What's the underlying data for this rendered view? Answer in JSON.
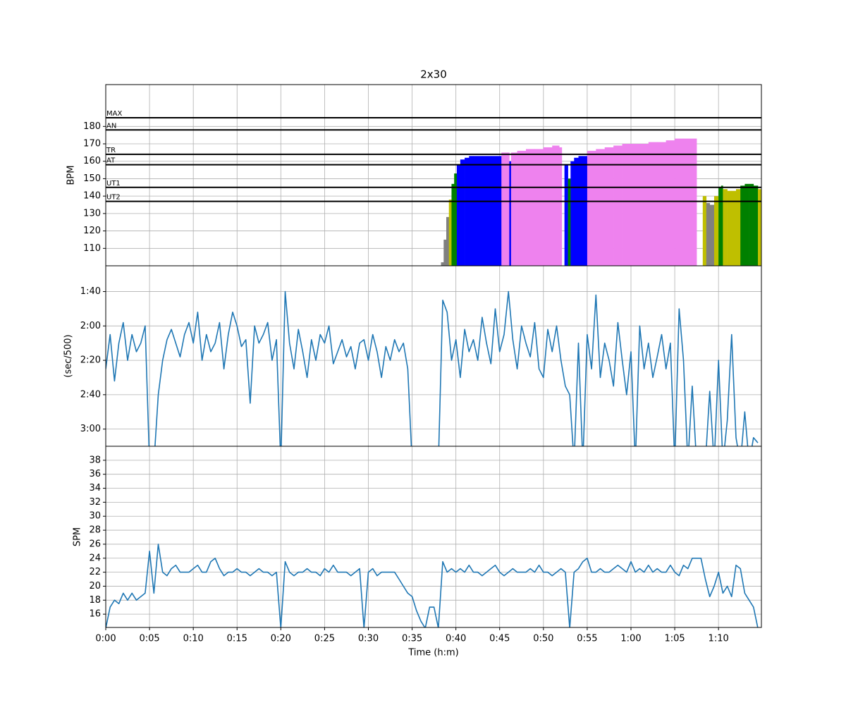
{
  "chart_data": [
    {
      "type": "area",
      "title": "2x30",
      "ylabel": "BPM",
      "xlim": [
        0,
        74.9
      ],
      "ylim": [
        100,
        204
      ],
      "yticks": [
        110,
        120,
        130,
        140,
        150,
        160,
        170,
        180
      ],
      "grid": true,
      "below_color": "gray",
      "zones": [
        {
          "name": "UT2",
          "value": 137,
          "color": "#bfbf00"
        },
        {
          "name": "UT1",
          "value": 145,
          "color": "green"
        },
        {
          "name": "AT",
          "value": 158,
          "color": "blue"
        },
        {
          "name": "TR",
          "value": 164,
          "color": "violet"
        },
        {
          "name": "AN",
          "value": 178
        },
        {
          "name": "MAX",
          "value": 185
        }
      ],
      "x": [
        38.3,
        38.6,
        38.9,
        39.2,
        39.5,
        39.8,
        40.1,
        40.5,
        41,
        41.5,
        42,
        43,
        44,
        45,
        45.2,
        46,
        46.1,
        46.3,
        47,
        48,
        49,
        50,
        51,
        51.8,
        52.1,
        52.4,
        52.8,
        53.1,
        53.5,
        54,
        54.5,
        55,
        56,
        57,
        58,
        59,
        60,
        61,
        62,
        63,
        64,
        65,
        66,
        67.2,
        67.5,
        68.2,
        68.6,
        69,
        69.5,
        70,
        70.3,
        70.5,
        71,
        71.5,
        72,
        72.5,
        73,
        73.5,
        74,
        74.5,
        74.9
      ],
      "values": [
        102,
        115,
        128,
        138,
        147,
        153,
        158,
        161,
        162,
        163,
        163,
        163,
        163,
        163,
        165,
        165,
        160,
        165,
        166,
        167,
        167,
        168,
        169,
        168,
        null,
        158,
        150,
        160,
        162,
        163,
        163,
        166,
        167,
        168,
        169,
        170,
        170,
        170,
        171,
        171,
        172,
        173,
        173,
        173,
        null,
        140,
        136,
        135,
        140,
        145,
        146,
        144,
        143,
        143,
        144,
        146,
        147,
        147,
        146,
        144,
        143
      ]
    },
    {
      "type": "line",
      "ylabel": "(sec/500)",
      "xlim": [
        0,
        74.9
      ],
      "ylim": [
        190,
        85
      ],
      "grid": true,
      "color": "#1f77b4",
      "yticks": [
        {
          "value": 100,
          "label": "1:40"
        },
        {
          "value": 120,
          "label": "2:00"
        },
        {
          "value": 140,
          "label": "2:20"
        },
        {
          "value": 160,
          "label": "2:40"
        },
        {
          "value": 180,
          "label": "3:00"
        }
      ],
      "x": [
        0,
        0.5,
        1,
        1.5,
        2,
        2.5,
        3,
        3.5,
        4,
        4.5,
        5,
        5.5,
        6,
        6.5,
        7,
        7.5,
        8,
        8.5,
        9,
        9.5,
        10,
        10.5,
        11,
        11.5,
        12,
        12.5,
        13,
        13.5,
        14,
        14.5,
        15,
        15.5,
        16,
        16.5,
        17,
        17.5,
        18,
        18.5,
        19,
        19.5,
        20,
        20.5,
        21,
        21.5,
        22,
        22.5,
        23,
        23.5,
        24,
        24.5,
        25,
        25.5,
        26,
        26.5,
        27,
        27.5,
        28,
        28.5,
        29,
        29.5,
        30,
        30.5,
        31,
        31.5,
        32,
        32.5,
        33,
        33.5,
        34,
        34.5,
        35,
        35.5,
        36,
        36.5,
        37,
        37.5,
        38,
        38.5,
        39,
        39.5,
        40,
        40.5,
        41,
        41.5,
        42,
        42.5,
        43,
        43.5,
        44,
        44.5,
        45,
        45.5,
        46,
        46.5,
        47,
        47.5,
        48,
        48.5,
        49,
        49.5,
        50,
        50.5,
        51,
        51.5,
        52,
        52.5,
        53,
        53.5,
        54,
        54.5,
        55,
        55.5,
        56,
        56.5,
        57,
        57.5,
        58,
        58.5,
        59,
        59.5,
        60,
        60.5,
        61,
        61.5,
        62,
        62.5,
        63,
        63.5,
        64,
        64.5,
        65,
        65.5,
        66,
        66.5,
        67,
        67.5,
        68,
        68.5,
        69,
        69.5,
        70,
        70.5,
        71,
        71.5,
        72,
        72.5,
        73,
        73.5,
        74,
        74.5
      ],
      "values": [
        145,
        125,
        152,
        130,
        118,
        140,
        125,
        135,
        130,
        120,
        200,
        200,
        160,
        140,
        128,
        122,
        130,
        138,
        125,
        118,
        130,
        112,
        140,
        125,
        135,
        130,
        118,
        145,
        125,
        112,
        120,
        132,
        128,
        165,
        120,
        130,
        125,
        118,
        140,
        128,
        200,
        100,
        130,
        145,
        122,
        135,
        150,
        128,
        140,
        125,
        130,
        120,
        142,
        135,
        128,
        138,
        132,
        145,
        130,
        128,
        140,
        125,
        135,
        150,
        132,
        140,
        128,
        135,
        130,
        145,
        200,
        null,
        null,
        null,
        null,
        null,
        200,
        105,
        112,
        140,
        128,
        150,
        122,
        135,
        128,
        140,
        115,
        130,
        142,
        110,
        135,
        125,
        100,
        128,
        145,
        120,
        130,
        138,
        118,
        145,
        150,
        122,
        135,
        120,
        140,
        155,
        160,
        200,
        130,
        200,
        125,
        145,
        102,
        150,
        130,
        140,
        155,
        118,
        140,
        160,
        135,
        200,
        120,
        145,
        130,
        150,
        138,
        125,
        145,
        130,
        200,
        110,
        140,
        200,
        155,
        200,
        null,
        200,
        158,
        200,
        140,
        200,
        175,
        125,
        185,
        200,
        170,
        200,
        185,
        188
      ]
    },
    {
      "type": "line",
      "ylabel": "SPM",
      "xlabel": "Time (h:m)",
      "xlim": [
        0,
        74.9
      ],
      "ylim": [
        14.1,
        40
      ],
      "grid": true,
      "color": "#1f77b4",
      "yticks": [
        16,
        18,
        20,
        22,
        24,
        26,
        28,
        30,
        32,
        34,
        36,
        38
      ],
      "xticks": [
        {
          "value": 0,
          "label": "0:00"
        },
        {
          "value": 5,
          "label": "0:05"
        },
        {
          "value": 10,
          "label": "0:10"
        },
        {
          "value": 15,
          "label": "0:15"
        },
        {
          "value": 20,
          "label": "0:20"
        },
        {
          "value": 25,
          "label": "0:25"
        },
        {
          "value": 30,
          "label": "0:30"
        },
        {
          "value": 35,
          "label": "0:35"
        },
        {
          "value": 40,
          "label": "0:40"
        },
        {
          "value": 45,
          "label": "0:45"
        },
        {
          "value": 50,
          "label": "0:50"
        },
        {
          "value": 55,
          "label": "0:55"
        },
        {
          "value": 60,
          "label": "1:00"
        },
        {
          "value": 65,
          "label": "1:05"
        },
        {
          "value": 70,
          "label": "1:10"
        }
      ],
      "x": [
        0,
        0.5,
        1,
        1.5,
        2,
        2.5,
        3,
        3.5,
        4,
        4.5,
        5,
        5.5,
        6,
        6.5,
        7,
        7.5,
        8,
        8.5,
        9,
        9.5,
        10,
        10.5,
        11,
        11.5,
        12,
        12.5,
        13,
        13.5,
        14,
        14.5,
        15,
        15.5,
        16,
        16.5,
        17,
        17.5,
        18,
        18.5,
        19,
        19.5,
        20,
        20.5,
        21,
        21.5,
        22,
        22.5,
        23,
        23.5,
        24,
        24.5,
        25,
        25.5,
        26,
        26.5,
        27,
        27.5,
        28,
        28.5,
        29,
        29.5,
        30,
        30.5,
        31,
        31.5,
        32,
        32.5,
        33,
        33.5,
        34,
        34.5,
        35,
        35.5,
        36,
        36.5,
        37,
        37.5,
        38,
        38.5,
        39,
        39.5,
        40,
        40.5,
        41,
        41.5,
        42,
        42.5,
        43,
        43.5,
        44,
        44.5,
        45,
        45.5,
        46,
        46.5,
        47,
        47.5,
        48,
        48.5,
        49,
        49.5,
        50,
        50.5,
        51,
        51.5,
        52,
        52.5,
        53,
        53.5,
        54,
        54.5,
        55,
        55.5,
        56,
        56.5,
        57,
        57.5,
        58,
        58.5,
        59,
        59.5,
        60,
        60.5,
        61,
        61.5,
        62,
        62.5,
        63,
        63.5,
        64,
        64.5,
        65,
        65.5,
        66,
        66.5,
        67,
        67.5,
        68,
        68.5,
        69,
        69.5,
        70,
        70.5,
        71,
        71.5,
        72,
        72.5,
        73,
        73.5,
        74,
        74.5
      ],
      "values": [
        14,
        17,
        18,
        17.5,
        19,
        18,
        19,
        18,
        18.5,
        19,
        25,
        19,
        26,
        22,
        21.5,
        22.5,
        23,
        22,
        22,
        22,
        22.5,
        23,
        22,
        22,
        23.5,
        24,
        22.5,
        21.5,
        22,
        22,
        22.5,
        22,
        22,
        21.5,
        22,
        22.5,
        22,
        22,
        21.5,
        22,
        14,
        23.5,
        22,
        21.5,
        22,
        22,
        22.5,
        22,
        22,
        21.5,
        22.5,
        22,
        23,
        22,
        22,
        22,
        21.5,
        22,
        22.5,
        14,
        22,
        22.5,
        21.5,
        22,
        22,
        22,
        22,
        21,
        20,
        19,
        18.5,
        16.5,
        15,
        14,
        17,
        17,
        14,
        23.5,
        22,
        22.5,
        22,
        22.5,
        22,
        23,
        22,
        22,
        21.5,
        22,
        22.5,
        23,
        22,
        21.5,
        22,
        22.5,
        22,
        22,
        22,
        22.5,
        22,
        23,
        22,
        22,
        21.5,
        22,
        22.5,
        22,
        14,
        22,
        22.5,
        23.5,
        24,
        22,
        22,
        22.5,
        22,
        22,
        22.5,
        23,
        22.5,
        22,
        23.5,
        22,
        22.5,
        22,
        23,
        22,
        22.5,
        22,
        22,
        23,
        22,
        21.5,
        23,
        22.5,
        24,
        24,
        24,
        21,
        18.5,
        20,
        22,
        19,
        20,
        18.5,
        23,
        22.5,
        19,
        18,
        17,
        14
      ]
    }
  ]
}
